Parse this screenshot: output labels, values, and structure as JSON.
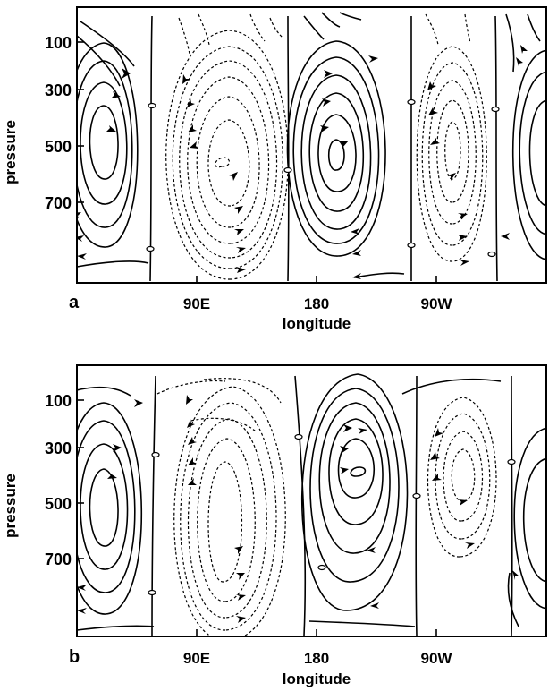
{
  "panels": [
    {
      "id": "a",
      "label": "a",
      "ylabel": "pressure",
      "xlabel": "longitude",
      "yticks": [
        "100",
        "300",
        "500",
        "700"
      ],
      "xticks": [
        "90E",
        "180",
        "90W"
      ]
    },
    {
      "id": "b",
      "label": "b",
      "ylabel": "pressure",
      "xlabel": "longitude",
      "yticks": [
        "100",
        "300",
        "500",
        "700"
      ],
      "xticks": [
        "90E",
        "180",
        "90W"
      ]
    }
  ]
}
